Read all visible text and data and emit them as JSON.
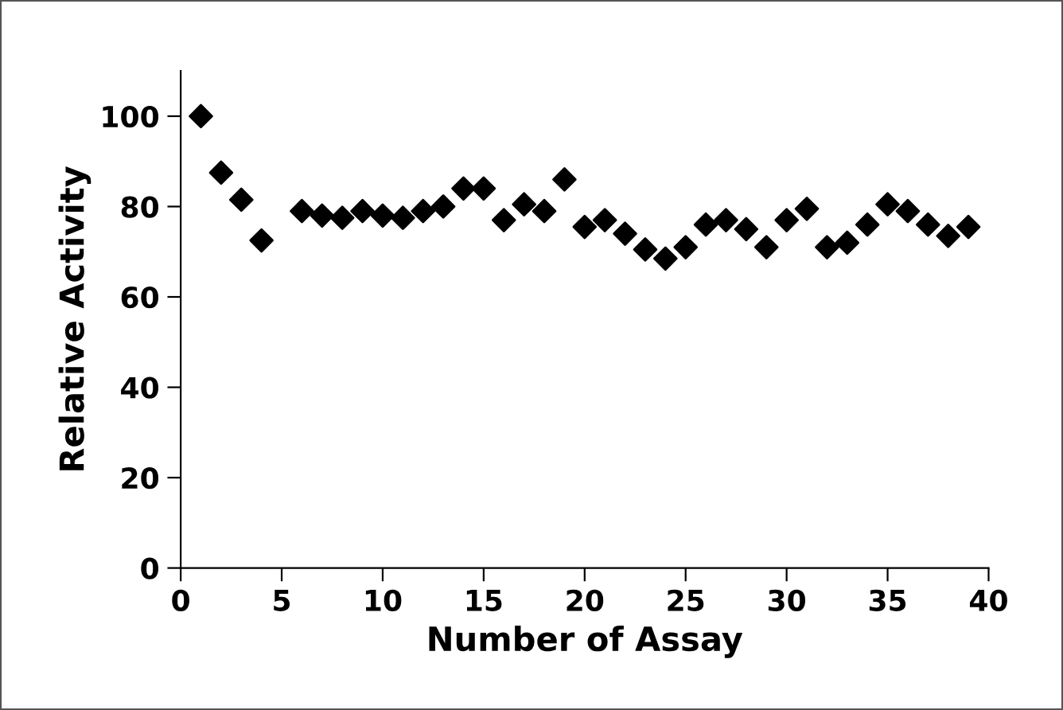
{
  "chart_data": {
    "type": "scatter",
    "xlabel": "Number of Assay",
    "ylabel": "Relative Activity",
    "x": [
      1,
      2,
      3,
      4,
      6,
      7,
      8,
      9,
      10,
      11,
      12,
      13,
      14,
      15,
      16,
      17,
      18,
      19,
      20,
      21,
      22,
      23,
      24,
      25,
      26,
      27,
      28,
      29,
      30,
      31,
      32,
      33,
      34,
      35,
      36,
      37,
      38,
      39
    ],
    "series": [
      {
        "color": "#000000",
        "values": [
          100,
          87.5,
          81.5,
          72.5,
          79,
          78,
          77.5,
          79,
          78,
          77.5,
          79,
          80,
          84,
          84,
          77,
          80.5,
          79,
          86,
          75.5,
          77,
          74,
          70.5,
          68.5,
          71,
          76,
          77,
          75,
          71,
          77,
          79.5,
          71,
          72,
          76,
          80.5,
          79,
          76,
          73.5,
          75.5
        ]
      }
    ],
    "xlim": [
      0,
      40
    ],
    "xticks": [
      0,
      5,
      10,
      15,
      20,
      25,
      30,
      35,
      40
    ],
    "ylim": [
      0,
      110
    ],
    "yticks": [
      0,
      20,
      40,
      60,
      80,
      100
    ],
    "marker": "diamond",
    "grid": false,
    "legend": false
  }
}
